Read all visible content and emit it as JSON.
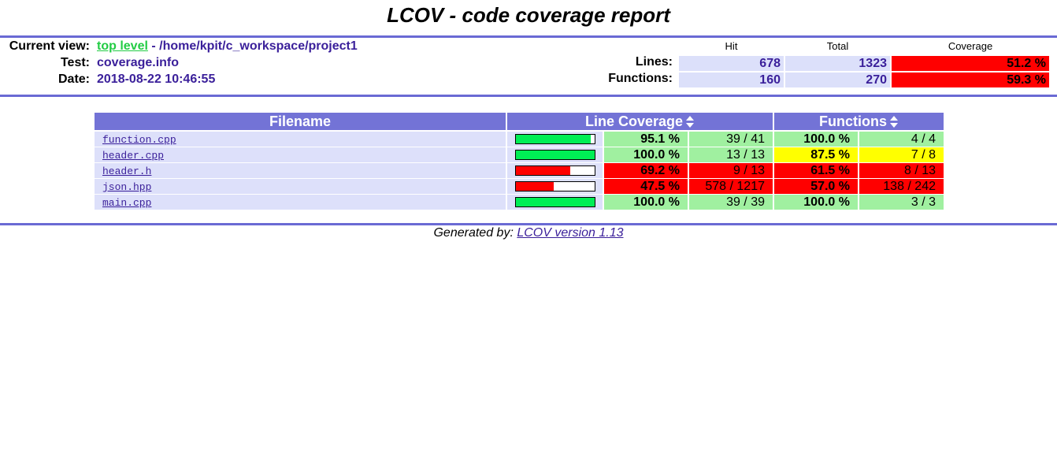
{
  "title": "LCOV - code coverage report",
  "header": {
    "current_view_label": "Current view:",
    "current_view_link": "top level",
    "current_view_sep": " - ",
    "current_view_path": "/home/kpit/c_workspace/project1",
    "test_label": "Test:",
    "test_value": "coverage.info",
    "date_label": "Date:",
    "date_value": "2018-08-22 10:46:55"
  },
  "summary": {
    "hit_label": "Hit",
    "total_label": "Total",
    "coverage_label": "Coverage",
    "lines_label": "Lines:",
    "lines_hit": "678",
    "lines_total": "1323",
    "lines_coverage": "51.2 %",
    "functions_label": "Functions:",
    "functions_hit": "160",
    "functions_total": "270",
    "functions_coverage": "59.3 %"
  },
  "table": {
    "col_filename": "Filename",
    "col_line_coverage": "Line Coverage",
    "col_functions": "Functions",
    "rows": [
      {
        "file": "function.cpp",
        "line_fraction": 0.951,
        "line_pct": "95.1 %",
        "line_count": "39 / 41",
        "func_pct": "100.0 %",
        "func_count": "4 / 4",
        "line_color": "#a0f0a0",
        "bar_color": "#00ee55",
        "func_color": "#a0f0a0"
      },
      {
        "file": "header.cpp",
        "line_fraction": 1.0,
        "line_pct": "100.0 %",
        "line_count": "13 / 13",
        "func_pct": "87.5 %",
        "func_count": "7 / 8",
        "line_color": "#a0f0a0",
        "bar_color": "#00ee55",
        "func_color": "#ffff00"
      },
      {
        "file": "header.h",
        "line_fraction": 0.692,
        "line_pct": "69.2 %",
        "line_count": "9 / 13",
        "func_pct": "61.5 %",
        "func_count": "8 / 13",
        "line_color": "#ff0000",
        "bar_color": "#ff0000",
        "func_color": "#ff0000"
      },
      {
        "file": "json.hpp",
        "line_fraction": 0.475,
        "line_pct": "47.5 %",
        "line_count": "578 / 1217",
        "func_pct": "57.0 %",
        "func_count": "138 / 242",
        "line_color": "#ff0000",
        "bar_color": "#ff0000",
        "func_color": "#ff0000"
      },
      {
        "file": "main.cpp",
        "line_fraction": 1.0,
        "line_pct": "100.0 %",
        "line_count": "39 / 39",
        "func_pct": "100.0 %",
        "func_count": "3 / 3",
        "line_color": "#a0f0a0",
        "bar_color": "#00ee55",
        "func_color": "#a0f0a0"
      }
    ]
  },
  "footer": {
    "prefix": "Generated by: ",
    "link": "LCOV version 1.13"
  }
}
